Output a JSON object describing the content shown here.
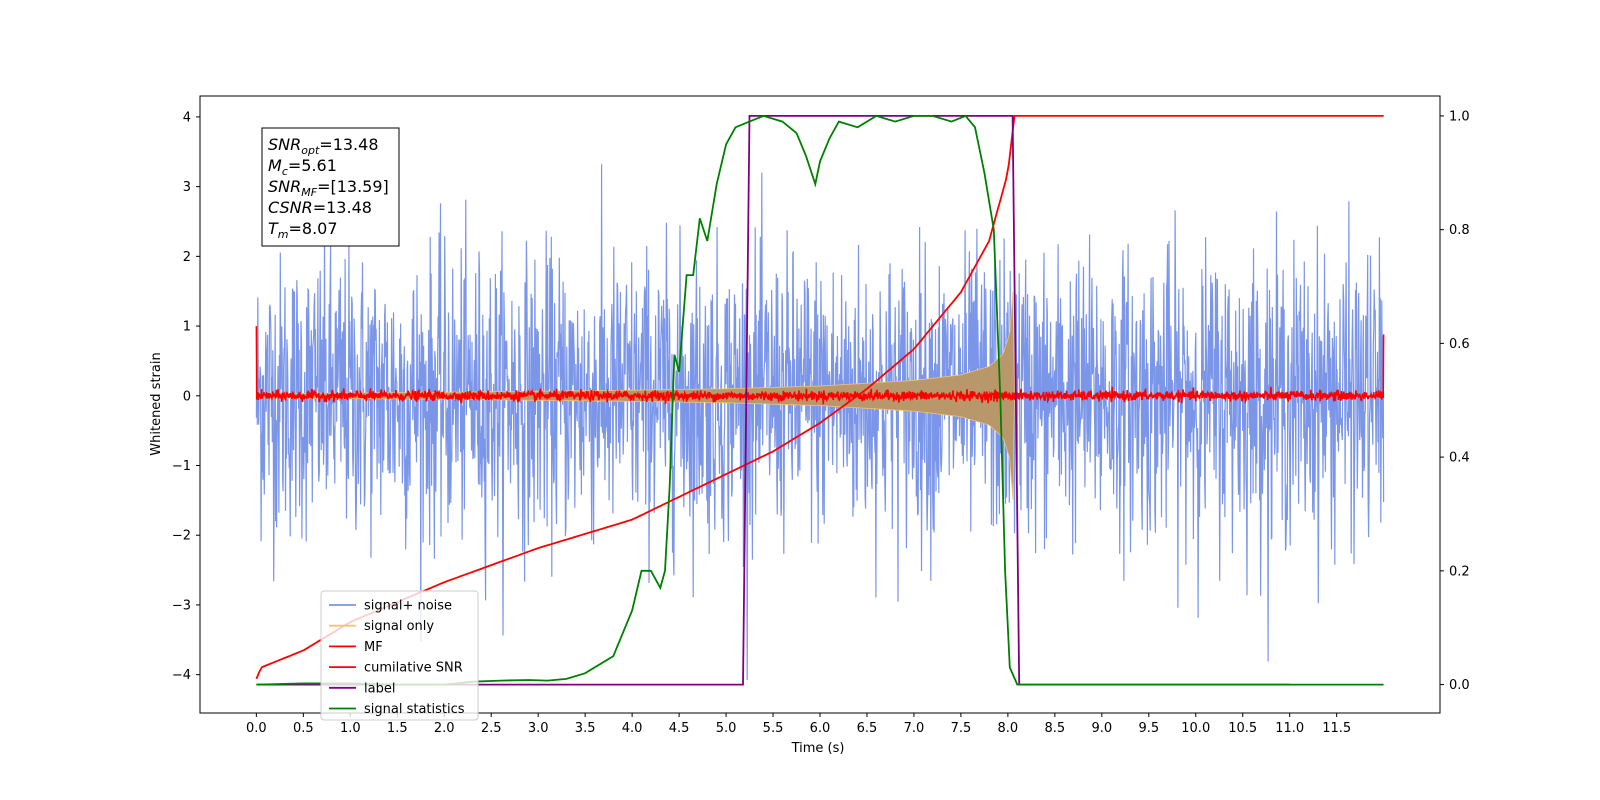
{
  "chart_data": {
    "type": "line",
    "xlabel": "Time (s)",
    "ylabel": "Whitened strain",
    "xlim": [
      -0.6,
      12.6
    ],
    "ylim": [
      -4.55,
      4.3
    ],
    "y2lim": [
      -0.05,
      1.035
    ],
    "xticks": [
      0.0,
      0.5,
      1.0,
      1.5,
      2.0,
      2.5,
      3.0,
      3.5,
      4.0,
      4.5,
      5.0,
      5.5,
      6.0,
      6.5,
      7.0,
      7.5,
      8.0,
      8.5,
      9.0,
      9.5,
      10.0,
      10.5,
      11.0,
      11.5
    ],
    "xtick_labels": [
      "0.0",
      "0.5",
      "1.0",
      "1.5",
      "2.0",
      "2.5",
      "3.0",
      "3.5",
      "4.0",
      "4.5",
      "5.0",
      "5.5",
      "6.0",
      "6.5",
      "7.0",
      "7.5",
      "8.0",
      "8.5",
      "9.0",
      "9.5",
      "10.0",
      "10.5",
      "11.0",
      "11.5"
    ],
    "yticks": [
      -4,
      -3,
      -2,
      -1,
      0,
      1,
      2,
      3,
      4
    ],
    "ytick_labels": [
      "−4",
      "−3",
      "−2",
      "−1",
      "0",
      "1",
      "2",
      "3",
      "4"
    ],
    "y2ticks": [
      0.0,
      0.2,
      0.4,
      0.6,
      0.8,
      1.0
    ],
    "y2tick_labels": [
      "0.0",
      "0.2",
      "0.4",
      "0.6",
      "0.8",
      "1.0"
    ],
    "grid": false,
    "legend_position": "lower-left",
    "annotation": {
      "lines": [
        {
          "main": "SNR",
          "sub": "opt",
          "value": "=13.48"
        },
        {
          "main": "M",
          "sub": "c",
          "value": "=5.61"
        },
        {
          "main": "SNR",
          "sub": "MF",
          "value": "=[13.59]"
        },
        {
          "main": "CSNR",
          "sub": "",
          "value": "=13.48"
        },
        {
          "main": "T",
          "sub": "m",
          "value": "=8.07"
        }
      ]
    },
    "series": [
      {
        "name": "signal+ noise",
        "axis": "left",
        "color": "#7b96e8",
        "kind": "noise-band",
        "x_range": [
          0.0,
          12.0
        ],
        "typical_amplitude": 1.3,
        "peak_max": 3.9,
        "peak_min": -4.15
      },
      {
        "name": "signal only",
        "axis": "left",
        "color": "#f5c07a",
        "kind": "chirp-envelope",
        "x_range": [
          0.0,
          8.07
        ],
        "envelope": [
          [
            0.0,
            0.03
          ],
          [
            2.0,
            0.05
          ],
          [
            4.0,
            0.08
          ],
          [
            5.0,
            0.1
          ],
          [
            6.0,
            0.14
          ],
          [
            7.0,
            0.22
          ],
          [
            7.5,
            0.3
          ],
          [
            7.8,
            0.42
          ],
          [
            7.95,
            0.6
          ],
          [
            8.02,
            0.9
          ],
          [
            8.06,
            1.6
          ],
          [
            8.07,
            0.0
          ]
        ]
      },
      {
        "name": "MF",
        "axis": "left",
        "color": "#ff0000",
        "kind": "noise-band",
        "x_range": [
          0.0,
          12.0
        ],
        "typical_amplitude": 0.08,
        "edge_values": [
          1.0,
          0.88
        ]
      },
      {
        "name": "cumilative SNR",
        "axis": "right",
        "color": "#ff0000",
        "points": [
          [
            0.0,
            0.01
          ],
          [
            0.05,
            0.03
          ],
          [
            0.5,
            0.06
          ],
          [
            1.0,
            0.11
          ],
          [
            2.0,
            0.18
          ],
          [
            3.0,
            0.24
          ],
          [
            4.0,
            0.29
          ],
          [
            5.0,
            0.37
          ],
          [
            5.5,
            0.41
          ],
          [
            6.0,
            0.46
          ],
          [
            6.5,
            0.52
          ],
          [
            7.0,
            0.59
          ],
          [
            7.5,
            0.69
          ],
          [
            7.8,
            0.78
          ],
          [
            8.0,
            0.9
          ],
          [
            8.07,
            1.0
          ],
          [
            12.0,
            1.0
          ]
        ]
      },
      {
        "name": "label",
        "axis": "right",
        "color": "#800080",
        "points": [
          [
            0.0,
            0.0
          ],
          [
            5.18,
            0.0
          ],
          [
            5.25,
            1.0
          ],
          [
            8.05,
            1.0
          ],
          [
            8.12,
            0.0
          ],
          [
            11.0,
            0.0
          ]
        ]
      },
      {
        "name": "signal statistics",
        "axis": "right",
        "color": "#008000",
        "points": [
          [
            0.0,
            0.0
          ],
          [
            0.5,
            0.002
          ],
          [
            1.0,
            0.002
          ],
          [
            1.5,
            0.0
          ],
          [
            2.0,
            0.0
          ],
          [
            2.3,
            0.005
          ],
          [
            2.6,
            0.007
          ],
          [
            2.9,
            0.008
          ],
          [
            3.1,
            0.007
          ],
          [
            3.3,
            0.01
          ],
          [
            3.5,
            0.02
          ],
          [
            3.8,
            0.05
          ],
          [
            4.0,
            0.13
          ],
          [
            4.1,
            0.2
          ],
          [
            4.2,
            0.2
          ],
          [
            4.3,
            0.17
          ],
          [
            4.35,
            0.2
          ],
          [
            4.4,
            0.35
          ],
          [
            4.45,
            0.58
          ],
          [
            4.5,
            0.55
          ],
          [
            4.58,
            0.72
          ],
          [
            4.65,
            0.72
          ],
          [
            4.72,
            0.82
          ],
          [
            4.8,
            0.78
          ],
          [
            4.9,
            0.88
          ],
          [
            5.0,
            0.95
          ],
          [
            5.1,
            0.98
          ],
          [
            5.25,
            0.99
          ],
          [
            5.4,
            1.0
          ],
          [
            5.6,
            0.99
          ],
          [
            5.75,
            0.97
          ],
          [
            5.85,
            0.93
          ],
          [
            5.95,
            0.88
          ],
          [
            6.0,
            0.92
          ],
          [
            6.1,
            0.96
          ],
          [
            6.2,
            0.99
          ],
          [
            6.4,
            0.98
          ],
          [
            6.6,
            1.0
          ],
          [
            6.8,
            0.99
          ],
          [
            7.0,
            1.0
          ],
          [
            7.2,
            1.0
          ],
          [
            7.4,
            0.99
          ],
          [
            7.55,
            1.0
          ],
          [
            7.65,
            0.98
          ],
          [
            7.75,
            0.9
          ],
          [
            7.85,
            0.8
          ],
          [
            7.92,
            0.5
          ],
          [
            7.97,
            0.2
          ],
          [
            8.02,
            0.03
          ],
          [
            8.1,
            0.0
          ],
          [
            12.0,
            0.0
          ]
        ]
      }
    ]
  }
}
